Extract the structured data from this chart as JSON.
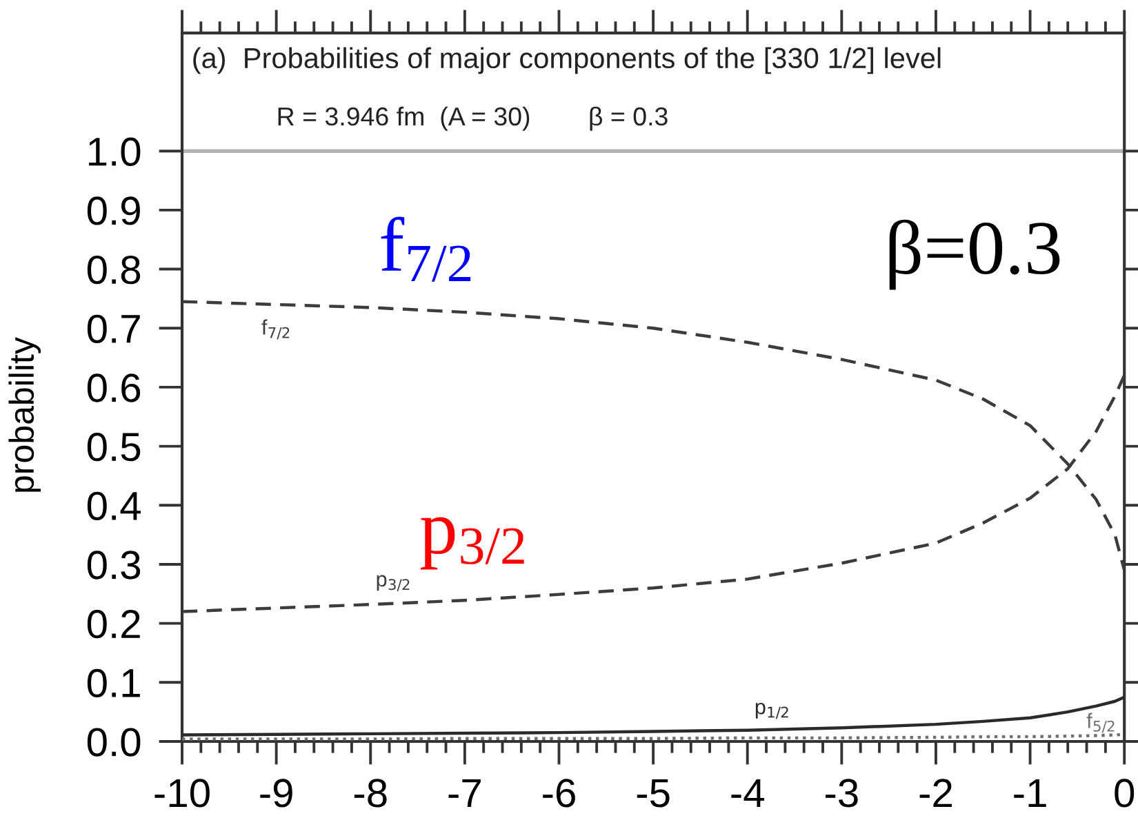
{
  "chart_data": {
    "type": "line",
    "title": "(a)  Probabilities of major components of the [330 1/2] level",
    "subtitle": "R = 3.946 fm  (A = 30)        β = 0.3",
    "ylabel": "probability",
    "x": [
      -10,
      -9,
      -8,
      -7,
      -6,
      -5,
      -4,
      -3,
      -2,
      -1.5,
      -1,
      -0.6,
      -0.3,
      -0.1,
      0
    ],
    "series": [
      {
        "name": "f$_{7/2}$",
        "color": "#3c3c3c",
        "line_style": "dashed",
        "values": [
          0.745,
          0.74,
          0.735,
          0.727,
          0.716,
          0.7,
          0.676,
          0.647,
          0.612,
          0.58,
          0.535,
          0.47,
          0.41,
          0.35,
          0.29
        ]
      },
      {
        "name": "p$_{3/2}$",
        "color": "#3c3c3c",
        "line_style": "dashed",
        "values": [
          0.22,
          0.226,
          0.232,
          0.239,
          0.249,
          0.26,
          0.275,
          0.302,
          0.336,
          0.37,
          0.412,
          0.462,
          0.525,
          0.585,
          0.62
        ]
      },
      {
        "name": "p$_{1/2}$",
        "color": "#2a2a2a",
        "line_style": "solid",
        "values": [
          0.011,
          0.012,
          0.013,
          0.014,
          0.015,
          0.017,
          0.019,
          0.023,
          0.029,
          0.034,
          0.04,
          0.05,
          0.06,
          0.068,
          0.075
        ]
      },
      {
        "name": "f$_{5/2}$",
        "color": "#707070",
        "line_style": "dotted",
        "values": [
          0.004,
          0.004,
          0.004,
          0.005,
          0.005,
          0.005,
          0.006,
          0.006,
          0.007,
          0.008,
          0.008,
          0.009,
          0.01,
          0.011,
          0.012
        ]
      }
    ],
    "xlim": [
      -10,
      0
    ],
    "ylim": [
      0,
      1.2
    ],
    "xticks": [
      -10,
      -9,
      -8,
      -7,
      -6,
      -5,
      -4,
      -3,
      -2,
      -1,
      0
    ],
    "yticks": [
      {
        "value": 0,
        "label": "0.0"
      },
      0.1,
      0.2,
      0.3,
      0.4,
      0.5,
      0.6,
      0.7,
      0.8,
      0.9,
      {
        "value": 1,
        "label": "1.0"
      }
    ],
    "ref_lines": [
      {
        "axis": "y",
        "value": 1.0,
        "color": "#b3b3b3"
      }
    ],
    "annotations": [
      "f$_{7/2}$",
      "p$_{3/2}$",
      "β=0.3"
    ]
  }
}
